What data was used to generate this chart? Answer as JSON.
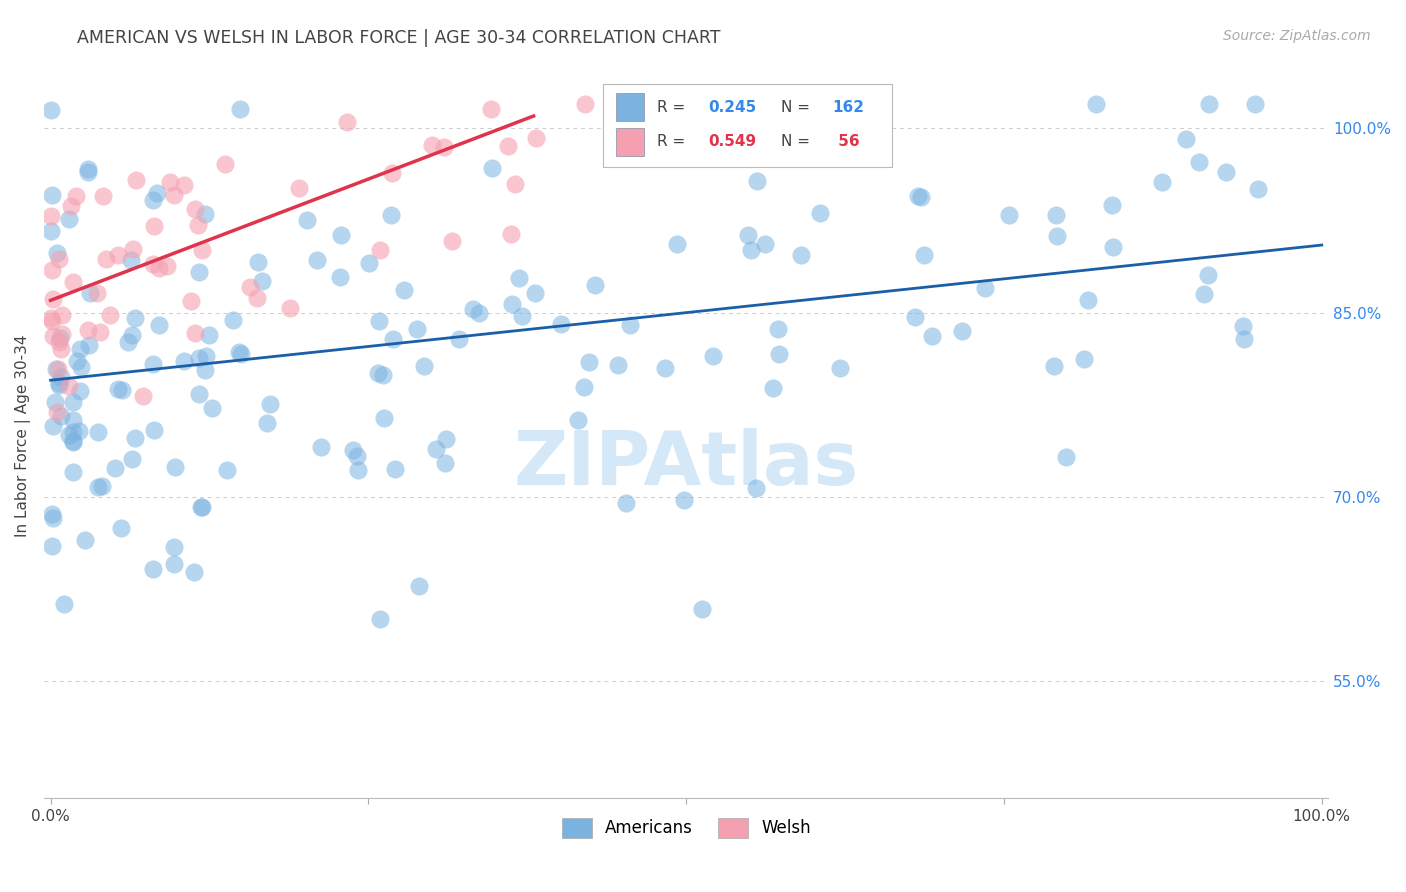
{
  "title": "AMERICAN VS WELSH IN LABOR FORCE | AGE 30-34 CORRELATION CHART",
  "source": "Source: ZipAtlas.com",
  "ylabel": "In Labor Force | Age 30-34",
  "ytick_labels": [
    "100.0%",
    "85.0%",
    "70.0%",
    "55.0%"
  ],
  "ytick_values": [
    1.0,
    0.85,
    0.7,
    0.55
  ],
  "xlim": [
    -0.005,
    1.005
  ],
  "ylim": [
    0.455,
    1.045
  ],
  "american_color": "#7ab3e0",
  "welsh_color": "#f5a0b0",
  "american_line_color": "#1a5fa8",
  "welsh_line_color": "#e0334c",
  "american_R": 0.245,
  "american_N": 162,
  "welsh_R": 0.549,
  "welsh_N": 56,
  "am_line_x0": 0.0,
  "am_line_x1": 1.0,
  "am_line_y0": 0.795,
  "am_line_y1": 0.905,
  "welsh_line_x0": 0.0,
  "welsh_line_x1": 0.38,
  "welsh_line_y0": 0.86,
  "welsh_line_y1": 1.01,
  "background_color": "#ffffff",
  "grid_color": "#cccccc",
  "title_color": "#444444",
  "ytick_color": "#3388ee",
  "watermark_color": "#d4e8f8",
  "legend_R_color": "#3388ee",
  "legend_R2_color": "#e0334c",
  "legend_N_color": "#3388ee",
  "legend_N2_color": "#e0334c"
}
